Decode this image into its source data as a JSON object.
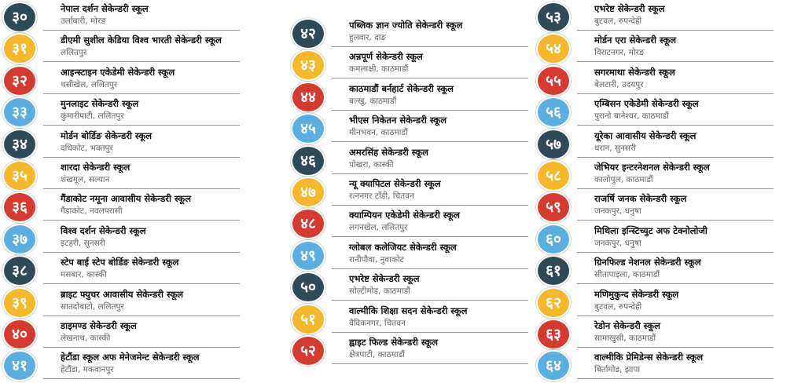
{
  "colors": {
    "dark": "#2f4a57",
    "yellow": "#f4b82a",
    "red": "#d63a2f",
    "blue": "#5aaee0"
  },
  "columns": [
    [
      {
        "num": "३०",
        "color": "dark",
        "name": "नेपाल दर्शन सेकेन्डरी स्कूल",
        "loc": "उर्लाबारी, मोरङ"
      },
      {
        "num": "३१",
        "color": "yellow",
        "name": "डीएमी सुशील केडिया विश्व भारती सेकेन्डरी स्कूल",
        "loc": "ललितपुर"
      },
      {
        "num": "३२",
        "color": "red",
        "name": "आइन्स्टाइन एकेडेमी सेकेन्डरी स्कूल",
        "loc": "थसीखेल, ललितपुर"
      },
      {
        "num": "३३",
        "color": "blue",
        "name": "मुनलाइट सेकेन्डरी स्कूल",
        "loc": "कुमारीपाटी, ललितपुर"
      },
      {
        "num": "३४",
        "color": "dark",
        "name": "मोर्डन बोर्डिङ सेकेन्डरी स्कूल",
        "loc": "दधिकोट, भक्तपुर"
      },
      {
        "num": "३५",
        "color": "yellow",
        "name": "शारदा सेकेन्डरी स्कूल",
        "loc": "शंखमूल, सल्यान"
      },
      {
        "num": "३६",
        "color": "red",
        "name": "गैंडाकोट नमूना आवासीय सेकेन्डरी स्कूल",
        "loc": "गैंडाकोट, नवलपरासी"
      },
      {
        "num": "३७",
        "color": "blue",
        "name": "विश्व दर्शन सेकेन्डरी स्कूल",
        "loc": "इटहरी, सुनसरी"
      },
      {
        "num": "३८",
        "color": "dark",
        "name": "स्टेप बाई स्टेप बोर्डिङ सेकेन्डरी स्कूल",
        "loc": "मसबार, कास्की"
      },
      {
        "num": "३९",
        "color": "yellow",
        "name": "ब्राइट फ्युचर आवासीय सेकेन्डरी स्कूल",
        "loc": "सातदोबाटो, ललितपुर"
      },
      {
        "num": "४०",
        "color": "red",
        "name": "डाइमण्ड सेकेन्डरी स्कूल",
        "loc": "लेखनाथ, कास्की"
      },
      {
        "num": "४१",
        "color": "blue",
        "name": "हेटौंडा स्कूल अफ मेनेजमेन्ट सेकेन्डरी स्कूल",
        "loc": "हेटौंडा, मकवानपुर"
      }
    ],
    [
      {
        "num": "४२",
        "color": "dark",
        "name": "पब्लिक ज्ञान ज्योति सेकेन्डरी स्कूल",
        "loc": "हुलवार, दाङ"
      },
      {
        "num": "४३",
        "color": "yellow",
        "name": "अन्नपूर्ण सेकेन्डरी स्कूल",
        "loc": "कमलाक्षी, काठमाडौं"
      },
      {
        "num": "४४",
        "color": "red",
        "name": "काठमाडौं बर्नहार्ट सेकेन्डरी स्कूल",
        "loc": "बल्खु, काठमाडौं"
      },
      {
        "num": "४५",
        "color": "blue",
        "name": "भीएस निकेतन सेकेन्डरी स्कूल",
        "loc": "मीनभवन, काठमाडौं"
      },
      {
        "num": "४६",
        "color": "dark",
        "name": "अमरसिंह सेकेन्डरी स्कूल",
        "loc": "पोखरा, कास्की"
      },
      {
        "num": "४७",
        "color": "yellow",
        "name": "न्यू क्यापिटल सेकेन्डरी स्कूल",
        "loc": "रत्ननगर टाँडी, चितवन"
      },
      {
        "num": "४८",
        "color": "red",
        "name": "क्याम्पियन एकेडेमी सेकेन्डरी स्कूल",
        "loc": "लगनखेल, ललितपुर"
      },
      {
        "num": "४९",
        "color": "blue",
        "name": "ग्लोबल कलेजियट सेकेन्डरी स्कूल",
        "loc": "रानीपौवा, नुवाकोट"
      },
      {
        "num": "५०",
        "color": "dark",
        "name": "एभरेष्ट सेकेन्डरी स्कूल",
        "loc": "सोल्टीमोड, काठमाडौं"
      },
      {
        "num": "५१",
        "color": "yellow",
        "name": "वाल्मीकि शिक्षा सदन सेकेन्डरी स्कूल",
        "loc": "वैदिकनगर, चितवन"
      },
      {
        "num": "५२",
        "color": "red",
        "name": "ह्वाइट फिल्ड सेकेन्डरी स्कूल",
        "loc": "क्षेत्रपाटी, काठमाडौं"
      }
    ],
    [
      {
        "num": "५३",
        "color": "dark",
        "name": "एभरेष्ट सेकेन्डरी स्कूल",
        "loc": "बुटवल, रुपन्देही"
      },
      {
        "num": "५४",
        "color": "yellow",
        "name": "मोर्डन एरा सेकेन्डरी स्कूल",
        "loc": "विराटनगर, मोरङ"
      },
      {
        "num": "५५",
        "color": "red",
        "name": "सगरमाथा सेकेन्डरी स्कूल",
        "loc": "बेलटारी, उदयपुर"
      },
      {
        "num": "५६",
        "color": "blue",
        "name": "एम्बिसन एकेडेमी सेकेन्डरी स्कूल",
        "loc": "पुरानो बानेश्वर, काठमाडौं"
      },
      {
        "num": "५७",
        "color": "dark",
        "name": "यूरेका आवासीय सेकेन्डरी स्कूल",
        "loc": "धरान, सुनसरी"
      },
      {
        "num": "५८",
        "color": "yellow",
        "name": "जेभियर इन्टरनेशनल सेकेन्डरी स्कूल",
        "loc": "कालोपुल, काठमाडौं"
      },
      {
        "num": "५९",
        "color": "red",
        "name": "राजर्षि जनक सेकेन्डरी स्कूल",
        "loc": "जनकपुर, धनुषा"
      },
      {
        "num": "६०",
        "color": "blue",
        "name": "मिथिला इन्स्टिच्युट अफ टेक्नोलोजी",
        "loc": "जनकपुर, धनुषा"
      },
      {
        "num": "६१",
        "color": "dark",
        "name": "ग्रिनफिल्ड नेशनल सेकेन्डरी स्कूल",
        "loc": "सीतापाइला, काठमाडौं"
      },
      {
        "num": "६२",
        "color": "yellow",
        "name": "मणिमुकुन्द सेकेन्डरी स्कूल",
        "loc": "बुटवल, रुपन्देही"
      },
      {
        "num": "६३",
        "color": "red",
        "name": "रेडोन सेकेन्डरी स्कूल",
        "loc": "सामाखुसी, काठमाडौं"
      },
      {
        "num": "६४",
        "color": "blue",
        "name": "वाल्मीकि प्रेमिडेन्स सेकेन्डरी स्कूल",
        "loc": "बिर्तामोड, झापा"
      }
    ]
  ]
}
